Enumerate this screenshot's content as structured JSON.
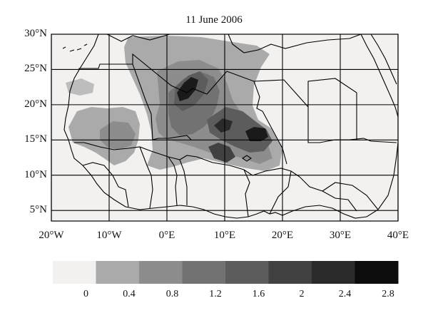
{
  "title": "11 June 2006",
  "lat_labels": [
    "30°N",
    "25°N",
    "20°N",
    "15°N",
    "10°N",
    "5°N"
  ],
  "lon_labels": [
    "20°W",
    "10°W",
    "0°E",
    "10°E",
    "20°E",
    "30°E",
    "40°E"
  ],
  "colorbar": {
    "labels": [
      "0",
      "0.4",
      "0.8",
      "1.2",
      "1.6",
      "2",
      "2.4",
      "2.8"
    ],
    "colors": [
      "#f3f1ef",
      "#a9aaa9",
      "#8d8d8d",
      "#727272",
      "#5c5c5c",
      "#414141",
      "#2a2a2a",
      "#0c0c0c"
    ]
  },
  "map": {
    "background": "#f3f1ef",
    "gridlines_deg": {
      "lat": [
        5,
        10,
        15,
        20,
        25,
        30
      ],
      "lon": [
        -20,
        -10,
        0,
        10,
        20,
        30,
        40
      ]
    },
    "extent_deg": {
      "lon": [
        -20,
        40
      ],
      "lat": [
        3.5,
        30
      ]
    }
  }
}
